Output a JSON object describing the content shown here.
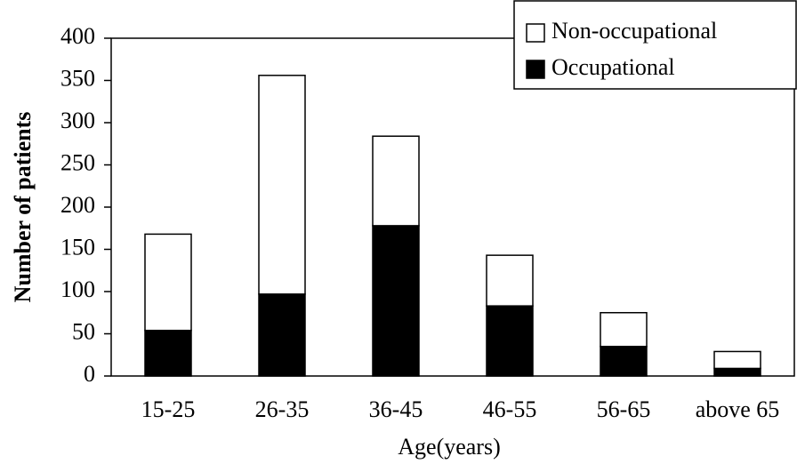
{
  "chart_data": {
    "type": "stacked-bar",
    "x_label": "Age(years)",
    "y_label": "Number of patients",
    "categories": [
      "15-25",
      "26-35",
      "36-45",
      "46-55",
      "56-65",
      "above 65"
    ],
    "series": [
      {
        "name": "Non-occupational",
        "color": "#ffffff",
        "values": [
          114,
          259,
          106,
          60,
          40,
          20
        ]
      },
      {
        "name": "Occupational",
        "color": "#000000",
        "values": [
          54,
          97,
          178,
          83,
          35,
          9
        ]
      }
    ],
    "ylim": [
      0,
      400
    ],
    "yticks": [
      0,
      50,
      100,
      150,
      200,
      250,
      300,
      350,
      400
    ],
    "legend": "upper right"
  }
}
